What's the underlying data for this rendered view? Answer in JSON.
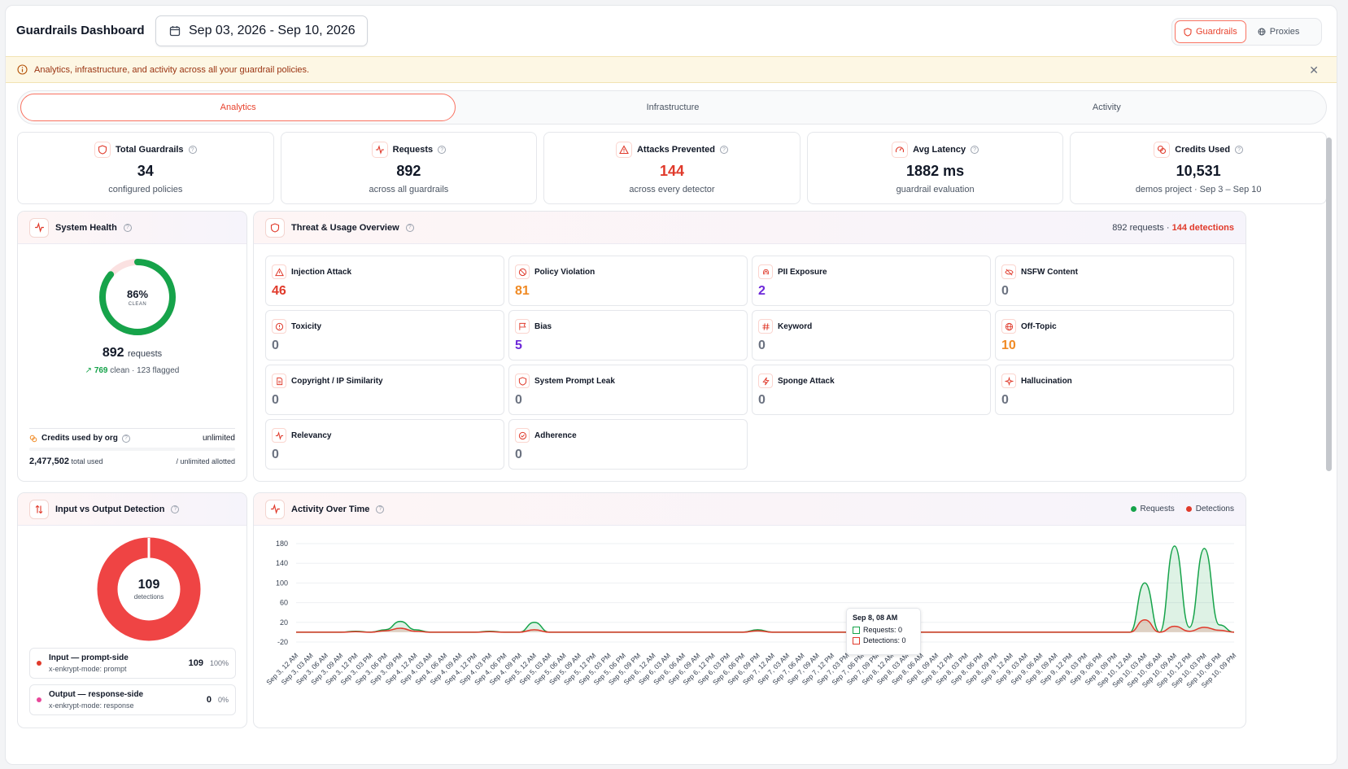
{
  "header": {
    "title": "Guardrails Dashboard",
    "date_range": "Sep 03, 2026 - Sep 10, 2026",
    "nav": [
      {
        "label": "Guardrails",
        "active": true
      },
      {
        "label": "Proxies",
        "active": false
      }
    ]
  },
  "banner": {
    "text": "Analytics, infrastructure, and activity across all your guardrail policies."
  },
  "tabs": [
    {
      "label": "Analytics",
      "active": true
    },
    {
      "label": "Infrastructure",
      "active": false
    },
    {
      "label": "Activity",
      "active": false
    }
  ],
  "stats": [
    {
      "label": "Total Guardrails",
      "value": "34",
      "sub": "configured policies",
      "icon": "shield-icon",
      "value_color": "#111827"
    },
    {
      "label": "Requests",
      "value": "892",
      "sub": "across all guardrails",
      "icon": "activity-icon",
      "value_color": "#111827"
    },
    {
      "label": "Attacks Prevented",
      "value": "144",
      "sub": "across every detector",
      "icon": "warning-icon",
      "value_color": "#e03a2b"
    },
    {
      "label": "Avg Latency",
      "value": "1882 ms",
      "sub": "guardrail evaluation",
      "icon": "gauge-icon",
      "value_color": "#111827"
    },
    {
      "label": "Credits Used",
      "value": "10,531",
      "sub": "demos project · Sep 3 – Sep 10",
      "icon": "coins-icon",
      "value_color": "#111827"
    }
  ],
  "system_health": {
    "title": "System Health",
    "clean_percent": 86,
    "percent_text": "86%",
    "percent_label": "CLEAN",
    "requests": "892",
    "requests_word": "requests",
    "clean_count": "769",
    "clean_rest": "clean · 123 flagged",
    "credits_label": "Credits used by org",
    "credits_limit": "unlimited",
    "credits_used": "2,477,502",
    "credits_used_word": "total used",
    "credits_allotted": "/ unlimited allotted"
  },
  "threat": {
    "title": "Threat & Usage Overview",
    "summary_requests": "892 requests ·",
    "summary_detections": "144 detections",
    "cards": [
      {
        "label": "Injection Attack",
        "value": "46",
        "color": "#e03a2b",
        "icon": "warning-icon"
      },
      {
        "label": "Policy Violation",
        "value": "81",
        "color": "#f08a24",
        "icon": "ban-icon"
      },
      {
        "label": "PII Exposure",
        "value": "2",
        "color": "#6d28d9",
        "icon": "fingerprint-icon"
      },
      {
        "label": "NSFW Content",
        "value": "0",
        "color": "#6b7280",
        "icon": "eye-off-icon"
      },
      {
        "label": "Toxicity",
        "value": "0",
        "color": "#6b7280",
        "icon": "alert-circle-icon"
      },
      {
        "label": "Bias",
        "value": "5",
        "color": "#6d28d9",
        "icon": "flag-icon"
      },
      {
        "label": "Keyword",
        "value": "0",
        "color": "#6b7280",
        "icon": "hash-icon"
      },
      {
        "label": "Off-Topic",
        "value": "10",
        "color": "#f08a24",
        "icon": "globe-icon"
      },
      {
        "label": "Copyright / IP Similarity",
        "value": "0",
        "color": "#6b7280",
        "icon": "document-icon"
      },
      {
        "label": "System Prompt Leak",
        "value": "0",
        "color": "#6b7280",
        "icon": "shield-icon"
      },
      {
        "label": "Sponge Attack",
        "value": "0",
        "color": "#6b7280",
        "icon": "zap-icon"
      },
      {
        "label": "Hallucination",
        "value": "0",
        "color": "#6b7280",
        "icon": "sparkle-icon"
      },
      {
        "label": "Relevancy",
        "value": "0",
        "color": "#6b7280",
        "icon": "activity-icon"
      },
      {
        "label": "Adherence",
        "value": "0",
        "color": "#6b7280",
        "icon": "check-circle-icon"
      }
    ]
  },
  "detection": {
    "title": "Input vs Output Detection",
    "total": "109",
    "total_label": "detections",
    "rows": [
      {
        "title": "Input — prompt-side",
        "sub": "x-enkrypt-mode: prompt",
        "count": "109",
        "pct": "100%",
        "color": "#e03a2b"
      },
      {
        "title": "Output — response-side",
        "sub": "x-enkrypt-mode: response",
        "count": "0",
        "pct": "0%",
        "color": "#e8479a"
      }
    ]
  },
  "activity": {
    "title": "Activity Over Time",
    "legend": [
      {
        "label": "Requests",
        "color": "#16a34a"
      },
      {
        "label": "Detections",
        "color": "#e03a2b"
      }
    ],
    "tooltip": {
      "title": "Sep 8, 08 AM",
      "requests": "Requests: 0",
      "detections": "Detections: 0"
    }
  },
  "chart_data": {
    "type": "area",
    "title": "Activity Over Time",
    "xlabel": "",
    "ylabel": "",
    "ylim": [
      -20,
      180
    ],
    "yticks": [
      180,
      140,
      100,
      60,
      20,
      -20
    ],
    "x": [
      "Sep 3, 12 AM",
      "Sep 3, 03 AM",
      "Sep 3, 06 AM",
      "Sep 3, 09 AM",
      "Sep 3, 12 PM",
      "Sep 3, 03 PM",
      "Sep 3, 06 PM",
      "Sep 3, 09 PM",
      "Sep 4, 12 AM",
      "Sep 4, 03 AM",
      "Sep 4, 06 AM",
      "Sep 4, 09 AM",
      "Sep 4, 12 PM",
      "Sep 4, 03 PM",
      "Sep 4, 06 PM",
      "Sep 4, 09 PM",
      "Sep 5, 12 AM",
      "Sep 5, 03 AM",
      "Sep 5, 06 AM",
      "Sep 5, 09 AM",
      "Sep 5, 12 PM",
      "Sep 5, 03 PM",
      "Sep 5, 06 PM",
      "Sep 5, 09 PM",
      "Sep 6, 12 AM",
      "Sep 6, 03 AM",
      "Sep 6, 06 AM",
      "Sep 6, 09 AM",
      "Sep 6, 12 PM",
      "Sep 6, 03 PM",
      "Sep 6, 06 PM",
      "Sep 6, 09 PM",
      "Sep 7, 12 AM",
      "Sep 7, 03 AM",
      "Sep 7, 06 AM",
      "Sep 7, 09 AM",
      "Sep 7, 12 PM",
      "Sep 7, 03 PM",
      "Sep 7, 06 PM",
      "Sep 7, 09 PM",
      "Sep 8, 12 AM",
      "Sep 8, 03 AM",
      "Sep 8, 06 AM",
      "Sep 8, 09 AM",
      "Sep 8, 12 PM",
      "Sep 8, 03 PM",
      "Sep 8, 06 PM",
      "Sep 8, 09 PM",
      "Sep 9, 12 AM",
      "Sep 9, 03 AM",
      "Sep 9, 06 AM",
      "Sep 9, 09 AM",
      "Sep 9, 12 PM",
      "Sep 9, 03 PM",
      "Sep 9, 06 PM",
      "Sep 9, 09 PM",
      "Sep 10, 12 AM",
      "Sep 10, 03 AM",
      "Sep 10, 06 AM",
      "Sep 10, 09 AM",
      "Sep 10, 12 PM",
      "Sep 10, 03 PM",
      "Sep 10, 06 PM",
      "Sep 10, 09 PM"
    ],
    "series": [
      {
        "name": "Requests",
        "color": "#16a34a",
        "values": [
          0,
          0,
          0,
          0,
          2,
          0,
          5,
          22,
          5,
          0,
          0,
          0,
          0,
          2,
          0,
          0,
          20,
          0,
          0,
          0,
          0,
          0,
          0,
          0,
          0,
          0,
          0,
          0,
          0,
          0,
          0,
          5,
          0,
          0,
          0,
          0,
          0,
          0,
          0,
          0,
          0,
          0,
          0,
          0,
          0,
          0,
          0,
          0,
          0,
          0,
          0,
          0,
          0,
          0,
          0,
          0,
          0,
          100,
          0,
          175,
          10,
          170,
          15,
          0
        ]
      },
      {
        "name": "Detections",
        "color": "#e03a2b",
        "values": [
          0,
          0,
          0,
          0,
          1,
          0,
          3,
          8,
          2,
          0,
          0,
          0,
          0,
          1,
          0,
          0,
          5,
          0,
          0,
          0,
          0,
          0,
          0,
          0,
          0,
          0,
          0,
          0,
          0,
          0,
          0,
          3,
          0,
          0,
          0,
          0,
          0,
          0,
          0,
          0,
          0,
          0,
          0,
          0,
          0,
          0,
          0,
          0,
          0,
          0,
          0,
          0,
          0,
          0,
          0,
          0,
          0,
          25,
          0,
          12,
          2,
          10,
          4,
          0
        ]
      }
    ],
    "grid": true,
    "legend": "top-right"
  }
}
